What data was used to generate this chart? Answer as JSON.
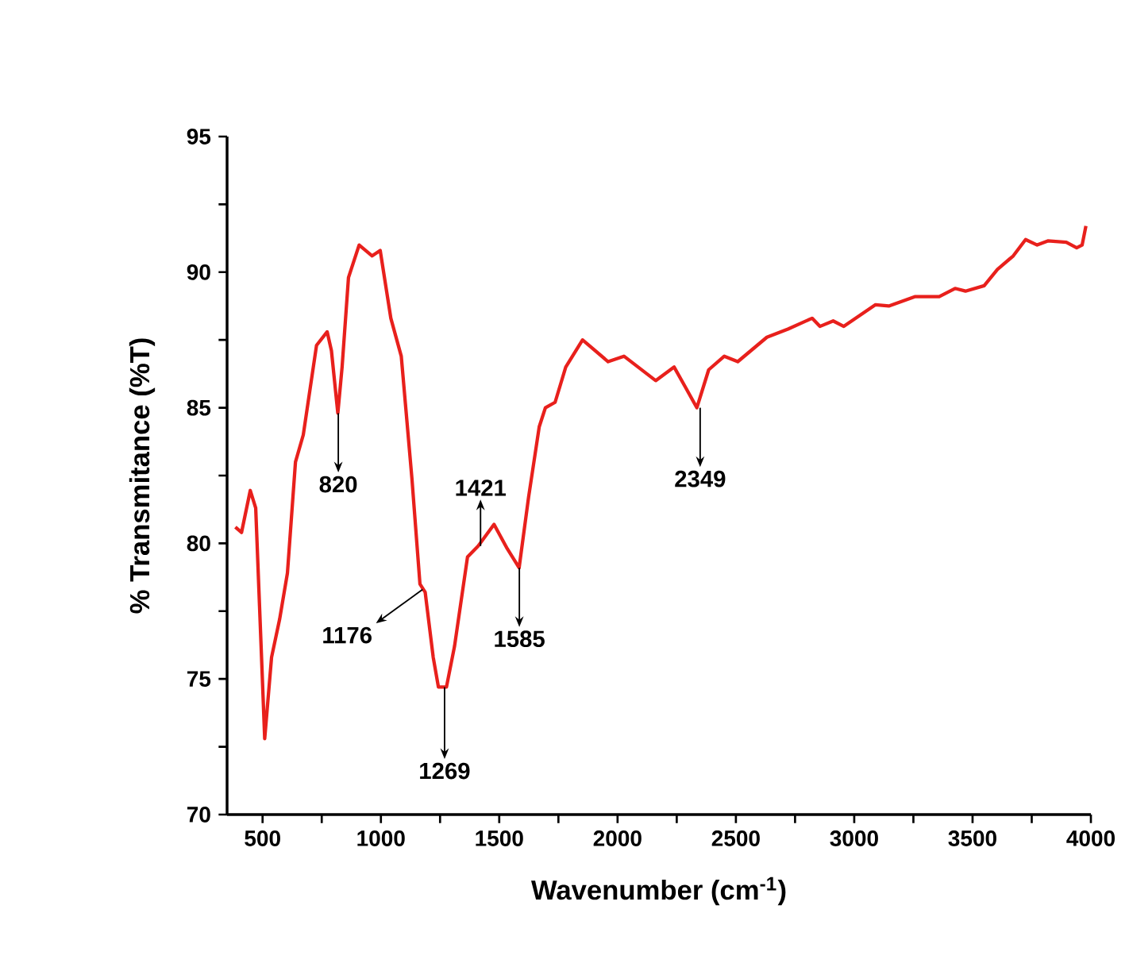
{
  "chart_data": {
    "type": "line",
    "xlabel": "Wavenumber (cm$^{-1}$)",
    "ylabel": "% Transmitance (%T)",
    "xlim": [
      350,
      4000
    ],
    "ylim": [
      70,
      95
    ],
    "xticks": [
      500,
      {
        "value": 750,
        "label": null
      },
      1000,
      {
        "value": 1250,
        "label": null
      },
      1500,
      {
        "value": 1750,
        "label": null
      },
      2000,
      {
        "value": 2250,
        "label": null
      },
      2500,
      {
        "value": 2750,
        "label": null
      },
      3000,
      {
        "value": 3250,
        "label": null
      },
      3500,
      {
        "value": 3750,
        "label": null
      },
      4000
    ],
    "yticks": [
      70,
      {
        "value": 72.5,
        "label": null
      },
      75,
      {
        "value": 77.5,
        "label": null
      },
      80,
      {
        "value": 82.5,
        "label": null
      },
      85,
      {
        "value": 87.5,
        "label": null
      },
      90,
      {
        "value": 92.5,
        "label": null
      },
      95
    ],
    "x": [
      385,
      411,
      448,
      471,
      509,
      538,
      572,
      605,
      639,
      672,
      728,
      773,
      791,
      818,
      836,
      863,
      908,
      963,
      997,
      1042,
      1086,
      1131,
      1165,
      1187,
      1221,
      1243,
      1277,
      1311,
      1366,
      1411,
      1478,
      1534,
      1584,
      1624,
      1669,
      1695,
      1736,
      1781,
      1852,
      1960,
      2027,
      2161,
      2239,
      2284,
      2335,
      2385,
      2451,
      2508,
      2631,
      2720,
      2822,
      2855,
      2911,
      2956,
      3090,
      3146,
      3258,
      3359,
      3426,
      3470,
      3549,
      3605,
      3672,
      3724,
      3773,
      3818,
      3896,
      3940,
      3963,
      3979
    ],
    "series": [
      {
        "color": "#e8201c",
        "values": [
          80.6,
          80.4,
          81.95,
          81.3,
          72.8,
          75.8,
          77.2,
          78.9,
          83.0,
          84.0,
          87.3,
          87.8,
          87.1,
          84.8,
          86.5,
          89.8,
          91.0,
          90.6,
          90.8,
          88.3,
          86.9,
          82.4,
          78.5,
          78.2,
          75.8,
          74.7,
          74.7,
          76.2,
          79.5,
          79.9,
          80.7,
          79.8,
          79.1,
          81.7,
          84.3,
          85.0,
          85.2,
          86.5,
          87.5,
          86.7,
          86.9,
          86.0,
          86.5,
          85.8,
          85.0,
          86.4,
          86.9,
          86.7,
          87.6,
          87.9,
          88.3,
          88.0,
          88.2,
          88.0,
          88.8,
          88.75,
          89.1,
          89.1,
          89.4,
          89.3,
          89.5,
          90.1,
          90.6,
          91.2,
          91.0,
          91.15,
          91.1,
          90.9,
          91.0,
          91.7
        ]
      }
    ],
    "annotations": [
      {
        "text": "820",
        "x": 820,
        "y": 84.8
      },
      {
        "text": "1176",
        "x": 1176,
        "y": 78.3
      },
      {
        "text": "1269",
        "x": 1269,
        "y": 74.7
      },
      {
        "text": "1421",
        "x": 1421,
        "y": 79.9
      },
      {
        "text": "1585",
        "x": 1585,
        "y": 79.1
      },
      {
        "text": "2349",
        "x": 2349,
        "y": 85.0
      }
    ]
  }
}
